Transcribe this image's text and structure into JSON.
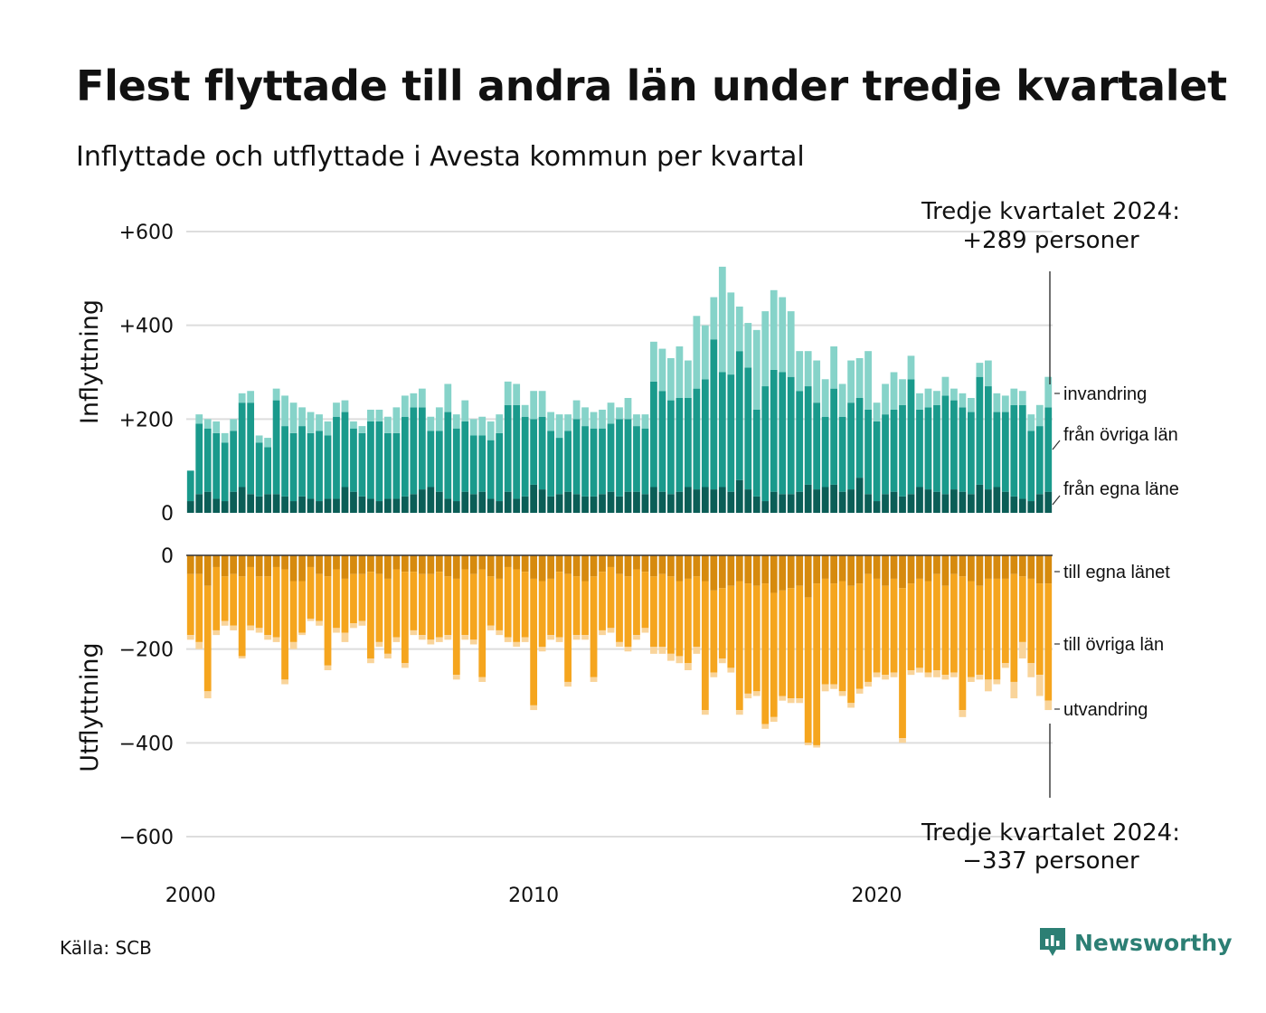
{
  "title": "Flest flyttade till andra län under tredje kvartalet",
  "subtitle": "Inflyttade och utflyttade i Avesta kommun per kvartal",
  "source": "Källa: SCB",
  "brand": "Newsworthy",
  "colors": {
    "in_local": "#0b5e57",
    "in_other": "#1a9a8c",
    "in_immigration": "#86d3c9",
    "out_local": "#d68a0e",
    "out_other": "#f5a51e",
    "out_emigration": "#f9d49a"
  },
  "chart_data": [
    {
      "type": "bar",
      "stacked": true,
      "ylabel": "Inflyttning",
      "ylim": [
        0,
        600
      ],
      "yticks": [
        "+600",
        "+400",
        "+200",
        "0"
      ],
      "xticks": [
        "2000",
        "2010",
        "2020"
      ],
      "x_start": "2000 Q1",
      "x_end": "2024 Q3",
      "grid": true,
      "series_names": [
        "från egna läne",
        "från övriga län",
        "invandring"
      ],
      "series": [
        {
          "name": "från egna läne",
          "values": [
            25,
            40,
            45,
            30,
            25,
            45,
            55,
            40,
            35,
            40,
            40,
            35,
            25,
            35,
            30,
            25,
            30,
            30,
            55,
            45,
            35,
            30,
            25,
            30,
            30,
            35,
            40,
            50,
            55,
            45,
            30,
            25,
            45,
            40,
            45,
            30,
            25,
            45,
            30,
            35,
            60,
            50,
            35,
            40,
            45,
            40,
            35,
            35,
            40,
            45,
            35,
            45,
            45,
            40,
            55,
            45,
            40,
            45,
            55,
            50,
            55,
            50,
            55,
            45,
            70,
            50,
            35,
            25,
            45,
            40,
            40,
            45,
            60,
            50,
            55,
            60,
            45,
            50,
            75,
            40,
            25,
            40,
            45,
            35,
            40,
            55,
            50,
            45,
            40,
            50,
            45,
            40,
            60,
            50,
            55,
            45,
            35,
            30,
            25,
            40,
            45
          ]
        },
        {
          "name": "från övriga län",
          "values": [
            65,
            150,
            135,
            140,
            125,
            130,
            180,
            195,
            115,
            100,
            200,
            150,
            145,
            150,
            140,
            150,
            135,
            175,
            160,
            135,
            135,
            165,
            170,
            140,
            140,
            170,
            185,
            175,
            120,
            130,
            185,
            155,
            150,
            125,
            120,
            125,
            145,
            185,
            200,
            170,
            140,
            155,
            140,
            120,
            130,
            160,
            150,
            145,
            140,
            145,
            165,
            155,
            140,
            140,
            225,
            215,
            200,
            200,
            190,
            215,
            230,
            320,
            245,
            250,
            275,
            260,
            185,
            245,
            260,
            260,
            250,
            215,
            210,
            185,
            150,
            205,
            160,
            185,
            170,
            180,
            170,
            170,
            175,
            195,
            245,
            165,
            175,
            185,
            210,
            190,
            180,
            175,
            230,
            220,
            160,
            170,
            195,
            200,
            150,
            145,
            180
          ]
        },
        {
          "name": "invandring",
          "values": [
            0,
            20,
            20,
            25,
            20,
            25,
            20,
            25,
            15,
            20,
            25,
            65,
            65,
            40,
            45,
            35,
            30,
            30,
            25,
            15,
            15,
            25,
            25,
            35,
            55,
            45,
            30,
            40,
            30,
            50,
            60,
            30,
            45,
            35,
            40,
            40,
            40,
            50,
            45,
            25,
            60,
            55,
            40,
            50,
            35,
            40,
            40,
            35,
            40,
            45,
            25,
            45,
            25,
            30,
            85,
            90,
            90,
            110,
            80,
            155,
            115,
            90,
            225,
            175,
            95,
            95,
            170,
            160,
            170,
            160,
            140,
            85,
            75,
            90,
            80,
            90,
            70,
            90,
            85,
            125,
            40,
            65,
            80,
            55,
            50,
            35,
            40,
            30,
            40,
            25,
            30,
            30,
            30,
            55,
            40,
            35,
            35,
            30,
            35,
            45,
            65
          ]
        }
      ]
    },
    {
      "type": "bar",
      "stacked": true,
      "ylabel": "Utflyttning",
      "ylim": [
        -600,
        0
      ],
      "yticks": [
        "0",
        "−200",
        "−400",
        "−600"
      ],
      "grid": true,
      "series_names": [
        "till egna länet",
        "till övriga län",
        "utvandring"
      ],
      "series": [
        {
          "name": "till egna länet",
          "values": [
            -40,
            -40,
            -65,
            -25,
            -45,
            -40,
            -45,
            -25,
            -45,
            -45,
            -25,
            -30,
            -55,
            -55,
            -25,
            -40,
            -45,
            -30,
            -50,
            -40,
            -40,
            -35,
            -40,
            -50,
            -30,
            -35,
            -35,
            -40,
            -40,
            -35,
            -45,
            -50,
            -30,
            -40,
            -30,
            -45,
            -50,
            -25,
            -30,
            -35,
            -50,
            -55,
            -50,
            -35,
            -40,
            -45,
            -55,
            -45,
            -35,
            -25,
            -40,
            -45,
            -30,
            -35,
            -45,
            -40,
            -45,
            -55,
            -50,
            -45,
            -55,
            -75,
            -70,
            -65,
            -55,
            -60,
            -65,
            -60,
            -80,
            -75,
            -70,
            -65,
            -90,
            -60,
            -50,
            -60,
            -55,
            -65,
            -60,
            -40,
            -50,
            -65,
            -50,
            -70,
            -60,
            -50,
            -55,
            -40,
            -65,
            -40,
            -45,
            -55,
            -65,
            -50,
            -50,
            -50,
            -40,
            -45,
            -50,
            -60,
            -60
          ]
        },
        {
          "name": "till övriga län",
          "values": [
            -130,
            -145,
            -225,
            -135,
            -95,
            -110,
            -170,
            -125,
            -110,
            -125,
            -150,
            -235,
            -130,
            -110,
            -110,
            -100,
            -190,
            -125,
            -115,
            -105,
            -100,
            -185,
            -145,
            -160,
            -145,
            -195,
            -125,
            -130,
            -140,
            -140,
            -125,
            -205,
            -140,
            -140,
            -230,
            -105,
            -110,
            -150,
            -155,
            -140,
            -270,
            -140,
            -120,
            -140,
            -230,
            -125,
            -115,
            -215,
            -125,
            -130,
            -145,
            -150,
            -140,
            -120,
            -150,
            -155,
            -165,
            -160,
            -180,
            -150,
            -275,
            -175,
            -150,
            -175,
            -275,
            -235,
            -225,
            -300,
            -265,
            -225,
            -235,
            -240,
            -310,
            -345,
            -225,
            -215,
            -235,
            -250,
            -225,
            -230,
            -200,
            -190,
            -200,
            -320,
            -185,
            -190,
            -195,
            -205,
            -190,
            -210,
            -285,
            -205,
            -190,
            -215,
            -215,
            -180,
            -230,
            -140,
            -180,
            -195,
            -250
          ]
        },
        {
          "name": "utvandring",
          "values": [
            -10,
            -15,
            -15,
            -10,
            -10,
            -10,
            -5,
            -10,
            -10,
            -10,
            -10,
            -10,
            -15,
            -5,
            -5,
            -10,
            -10,
            -10,
            -20,
            -10,
            -10,
            -10,
            -10,
            -10,
            -10,
            -10,
            -10,
            -10,
            -10,
            -10,
            -10,
            -10,
            -10,
            -10,
            -10,
            -10,
            -10,
            -10,
            -10,
            -10,
            -10,
            -10,
            -10,
            -10,
            -10,
            -10,
            -10,
            -10,
            -10,
            -10,
            -10,
            -10,
            -10,
            -10,
            -15,
            -15,
            -15,
            -15,
            -15,
            -15,
            -10,
            -10,
            -10,
            -10,
            -10,
            -10,
            -10,
            -10,
            -10,
            -10,
            -10,
            -10,
            -5,
            -5,
            -15,
            -10,
            -10,
            -10,
            -10,
            -10,
            -10,
            -10,
            -10,
            -10,
            -10,
            -10,
            -10,
            -15,
            -10,
            -10,
            -15,
            -10,
            -10,
            -25,
            -10,
            -10,
            -35,
            -35,
            -30,
            -45,
            -20
          ]
        }
      ]
    }
  ],
  "annotations": {
    "top_line1": "Tredje kvartalet 2024:",
    "top_line2": "+289 personer",
    "bottom_line1": "Tredje kvartalet 2024:",
    "bottom_line2": "−337 personer"
  }
}
